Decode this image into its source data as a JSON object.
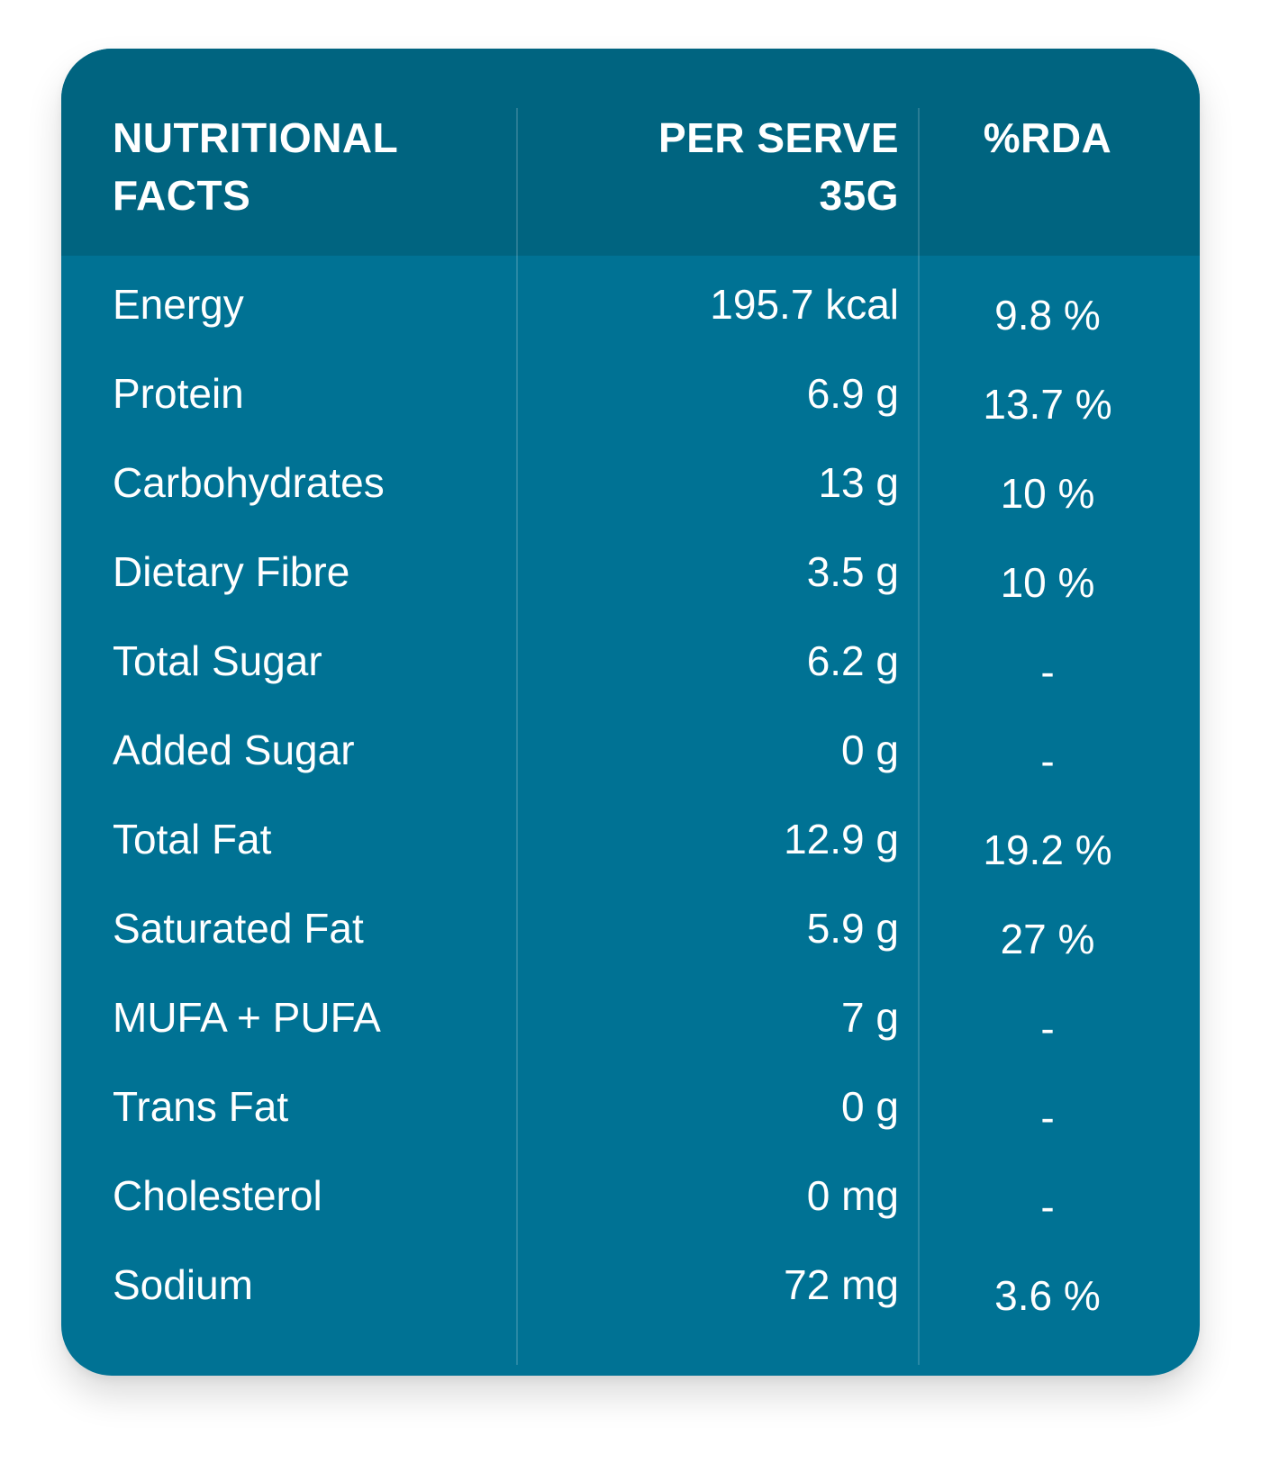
{
  "header": {
    "col_nutrient": "NUTRITIONAL\nFACTS",
    "col_per_serve": "PER SERVE\n35G",
    "col_rda": "%RDA"
  },
  "rows": [
    {
      "name": "Energy",
      "per_serve": "195.7 kcal",
      "rda": "9.8 %"
    },
    {
      "name": "Protein",
      "per_serve": "6.9 g",
      "rda": "13.7 %"
    },
    {
      "name": "Carbohydrates",
      "per_serve": "13 g",
      "rda": "10 %"
    },
    {
      "name": "Dietary Fibre",
      "per_serve": "3.5 g",
      "rda": "10 %"
    },
    {
      "name": "Total Sugar",
      "per_serve": "6.2 g",
      "rda": "-"
    },
    {
      "name": "Added Sugar",
      "per_serve": "0 g",
      "rda": "-"
    },
    {
      "name": "Total Fat",
      "per_serve": "12.9 g",
      "rda": "19.2 %"
    },
    {
      "name": "Saturated Fat",
      "per_serve": "5.9 g",
      "rda": "27 %"
    },
    {
      "name": "MUFA + PUFA",
      "per_serve": "7 g",
      "rda": "-"
    },
    {
      "name": "Trans Fat",
      "per_serve": "0 g",
      "rda": "-"
    },
    {
      "name": "Cholesterol",
      "per_serve": "0 mg",
      "rda": "-"
    },
    {
      "name": "Sodium",
      "per_serve": "72 mg",
      "rda": "3.6 %"
    }
  ],
  "colors": {
    "card": "#007294",
    "header": "#006480",
    "text": "#ffffff"
  }
}
